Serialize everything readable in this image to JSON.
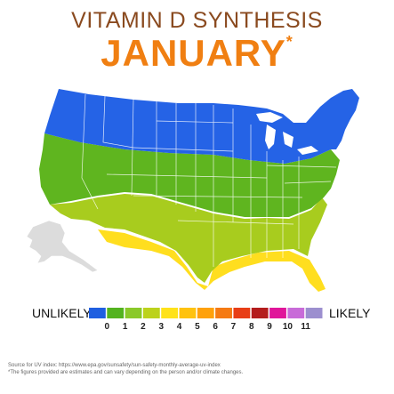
{
  "title": "VITAMIN D SYNTHESIS",
  "month": "JANUARY",
  "asterisk": "*",
  "legend": {
    "left_label": "UNLIKELY",
    "right_label": "LIKELY",
    "ticks": [
      "0",
      "1",
      "2",
      "3",
      "4",
      "5",
      "6",
      "7",
      "8",
      "9",
      "10",
      "11"
    ],
    "colors": [
      "#1f5fe0",
      "#53b31f",
      "#8ac92a",
      "#bcd21c",
      "#ffe21a",
      "#ffc20e",
      "#ffa10b",
      "#f57a13",
      "#e83e16",
      "#b41c1c",
      "#e0159a",
      "#c86bd8",
      "#9c8fcf"
    ]
  },
  "regions": {
    "north": {
      "level": 0,
      "color": "#2563e6"
    },
    "central": {
      "level": 1,
      "color": "#5fb51f"
    },
    "south": {
      "level": 2,
      "color": "#a9cc1e"
    },
    "southmost": {
      "level": 3,
      "color": "#ffdf1e"
    },
    "alaska": {
      "color": "#dcdcdc"
    }
  },
  "source_lines": [
    "Source for UV index: https://www.epa.gov/sunsafety/sun-safety-monthly-average-uv-index",
    "*The figures provided are estimates and can vary depending on the person and/or climate changes."
  ]
}
